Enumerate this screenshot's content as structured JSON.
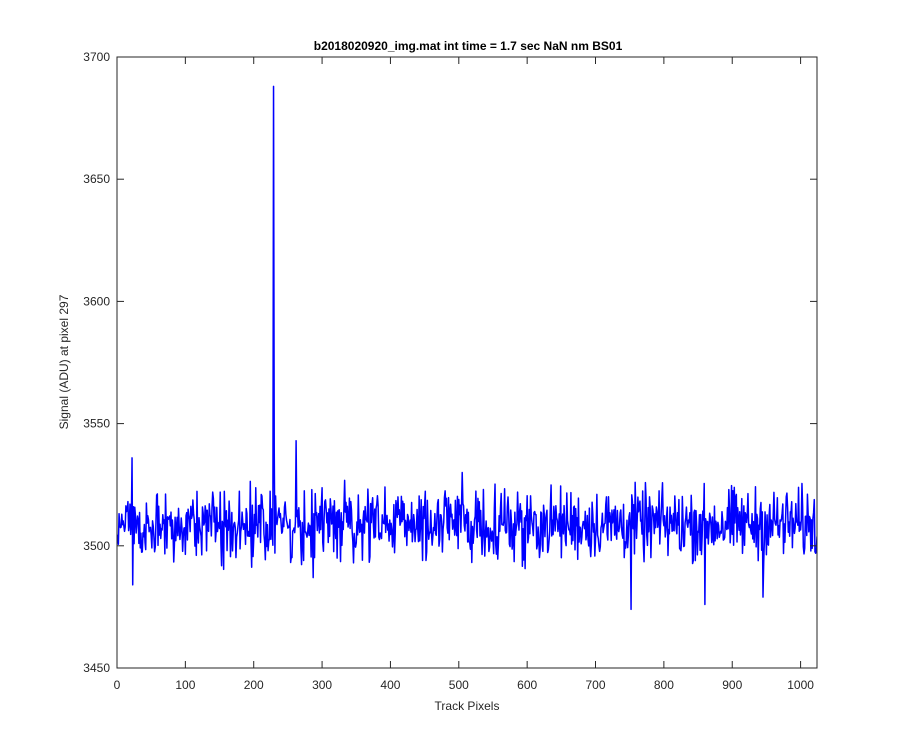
{
  "chart_data": {
    "type": "line",
    "title": "b2018020920_img.mat int time = 1.7 sec  NaN nm BS01",
    "xlabel": "Track Pixels",
    "ylabel": "Signal (ADU) at pixel 297",
    "xlim": [
      0,
      1024
    ],
    "ylim": [
      3450,
      3700
    ],
    "xticks": [
      0,
      100,
      200,
      300,
      400,
      500,
      600,
      700,
      800,
      900,
      1000
    ],
    "yticks": [
      3450,
      3500,
      3550,
      3600,
      3650,
      3700
    ],
    "grid": false,
    "series_color": "#0000ff",
    "series": [
      {
        "n_points": 1024,
        "baseline": 3509,
        "noise_amplitude": 7,
        "notable_points": [
          {
            "x": 22,
            "y": 3536
          },
          {
            "x": 23,
            "y": 3484
          },
          {
            "x": 229,
            "y": 3688
          },
          {
            "x": 230,
            "y": 3540
          },
          {
            "x": 231,
            "y": 3497
          },
          {
            "x": 262,
            "y": 3543
          },
          {
            "x": 287,
            "y": 3487
          },
          {
            "x": 505,
            "y": 3530
          },
          {
            "x": 752,
            "y": 3474
          },
          {
            "x": 860,
            "y": 3476
          },
          {
            "x": 945,
            "y": 3479
          }
        ]
      }
    ]
  }
}
